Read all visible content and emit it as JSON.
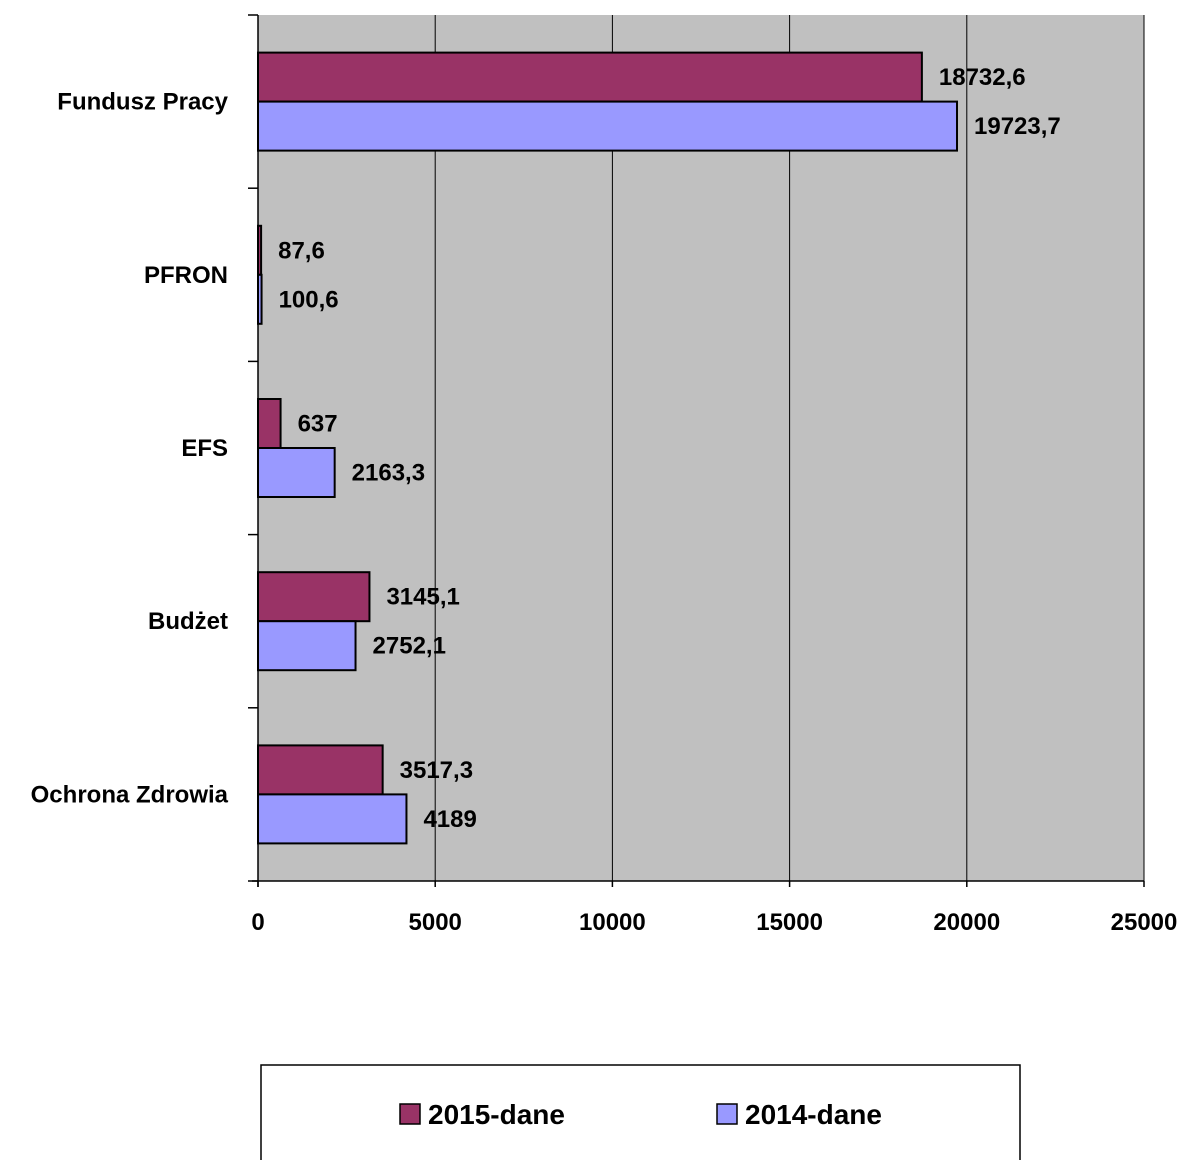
{
  "chart_data": {
    "type": "bar",
    "orientation": "horizontal",
    "categories": [
      "Fundusz Pracy",
      "PFRON",
      "EFS",
      "Budżet",
      "Ochrona Zdrowia"
    ],
    "series": [
      {
        "name": "2015-dane",
        "color": "#993366",
        "values": [
          18732.6,
          87.6,
          637,
          3145.1,
          3517.3
        ],
        "labels": [
          "18732,6",
          "87,6",
          "637",
          "3145,1",
          "3517,3"
        ]
      },
      {
        "name": "2014-dane",
        "color": "#9999FF",
        "values": [
          19723.7,
          100.6,
          2163.3,
          2752.1,
          4189
        ],
        "labels": [
          "19723,7",
          "100,6",
          "2163,3",
          "2752,1",
          "4189"
        ]
      }
    ],
    "xlim": [
      0,
      25000
    ],
    "xticks": [
      0,
      5000,
      10000,
      15000,
      20000,
      25000
    ],
    "xtick_labels": [
      "0",
      "5000",
      "10000",
      "15000",
      "20000",
      "25000"
    ],
    "grid": "vertical",
    "plot_background": "#C0C0C0",
    "legend_position": "bottom"
  }
}
